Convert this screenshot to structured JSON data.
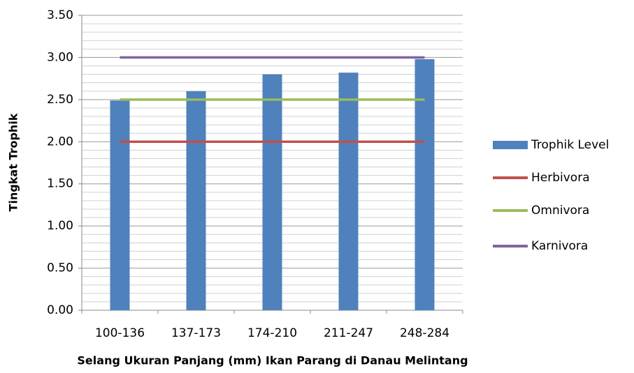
{
  "chart_data": {
    "type": "bar",
    "x_label": "Selang Ukuran Panjang (mm) Ikan Parang di Danau Melintang",
    "y_label": "Tingkat Trophik",
    "categories": [
      "100-136",
      "137-173",
      "174-210",
      "211-247",
      "248-284"
    ],
    "series": [
      {
        "name": "Trophik Level",
        "type": "bar",
        "color": "#4f81bd",
        "values": [
          2.49,
          2.6,
          2.8,
          2.82,
          2.98
        ]
      },
      {
        "name": "Herbivora",
        "type": "line",
        "color": "#c0504d",
        "values": [
          2,
          2,
          2,
          2,
          2
        ]
      },
      {
        "name": "Omnivora",
        "type": "line",
        "color": "#9bbb59",
        "values": [
          2.5,
          2.5,
          2.5,
          2.5,
          2.5
        ]
      },
      {
        "name": "Karnivora",
        "type": "line",
        "color": "#8064a2",
        "values": [
          3,
          3,
          3,
          3,
          3
        ]
      }
    ],
    "ylim": [
      0,
      3.5
    ],
    "yticks": [
      {
        "value": 0,
        "label": "0.00"
      },
      {
        "value": 0.5,
        "label": "0.50"
      },
      {
        "value": 1,
        "label": "1.00"
      },
      {
        "value": 1.5,
        "label": "1.50"
      },
      {
        "value": 2,
        "label": "2.00"
      },
      {
        "value": 2.5,
        "label": "2.50"
      },
      {
        "value": 3,
        "label": "3.00"
      },
      {
        "value": 3.5,
        "label": "3.50"
      }
    ],
    "grid": true,
    "legend": "right"
  }
}
